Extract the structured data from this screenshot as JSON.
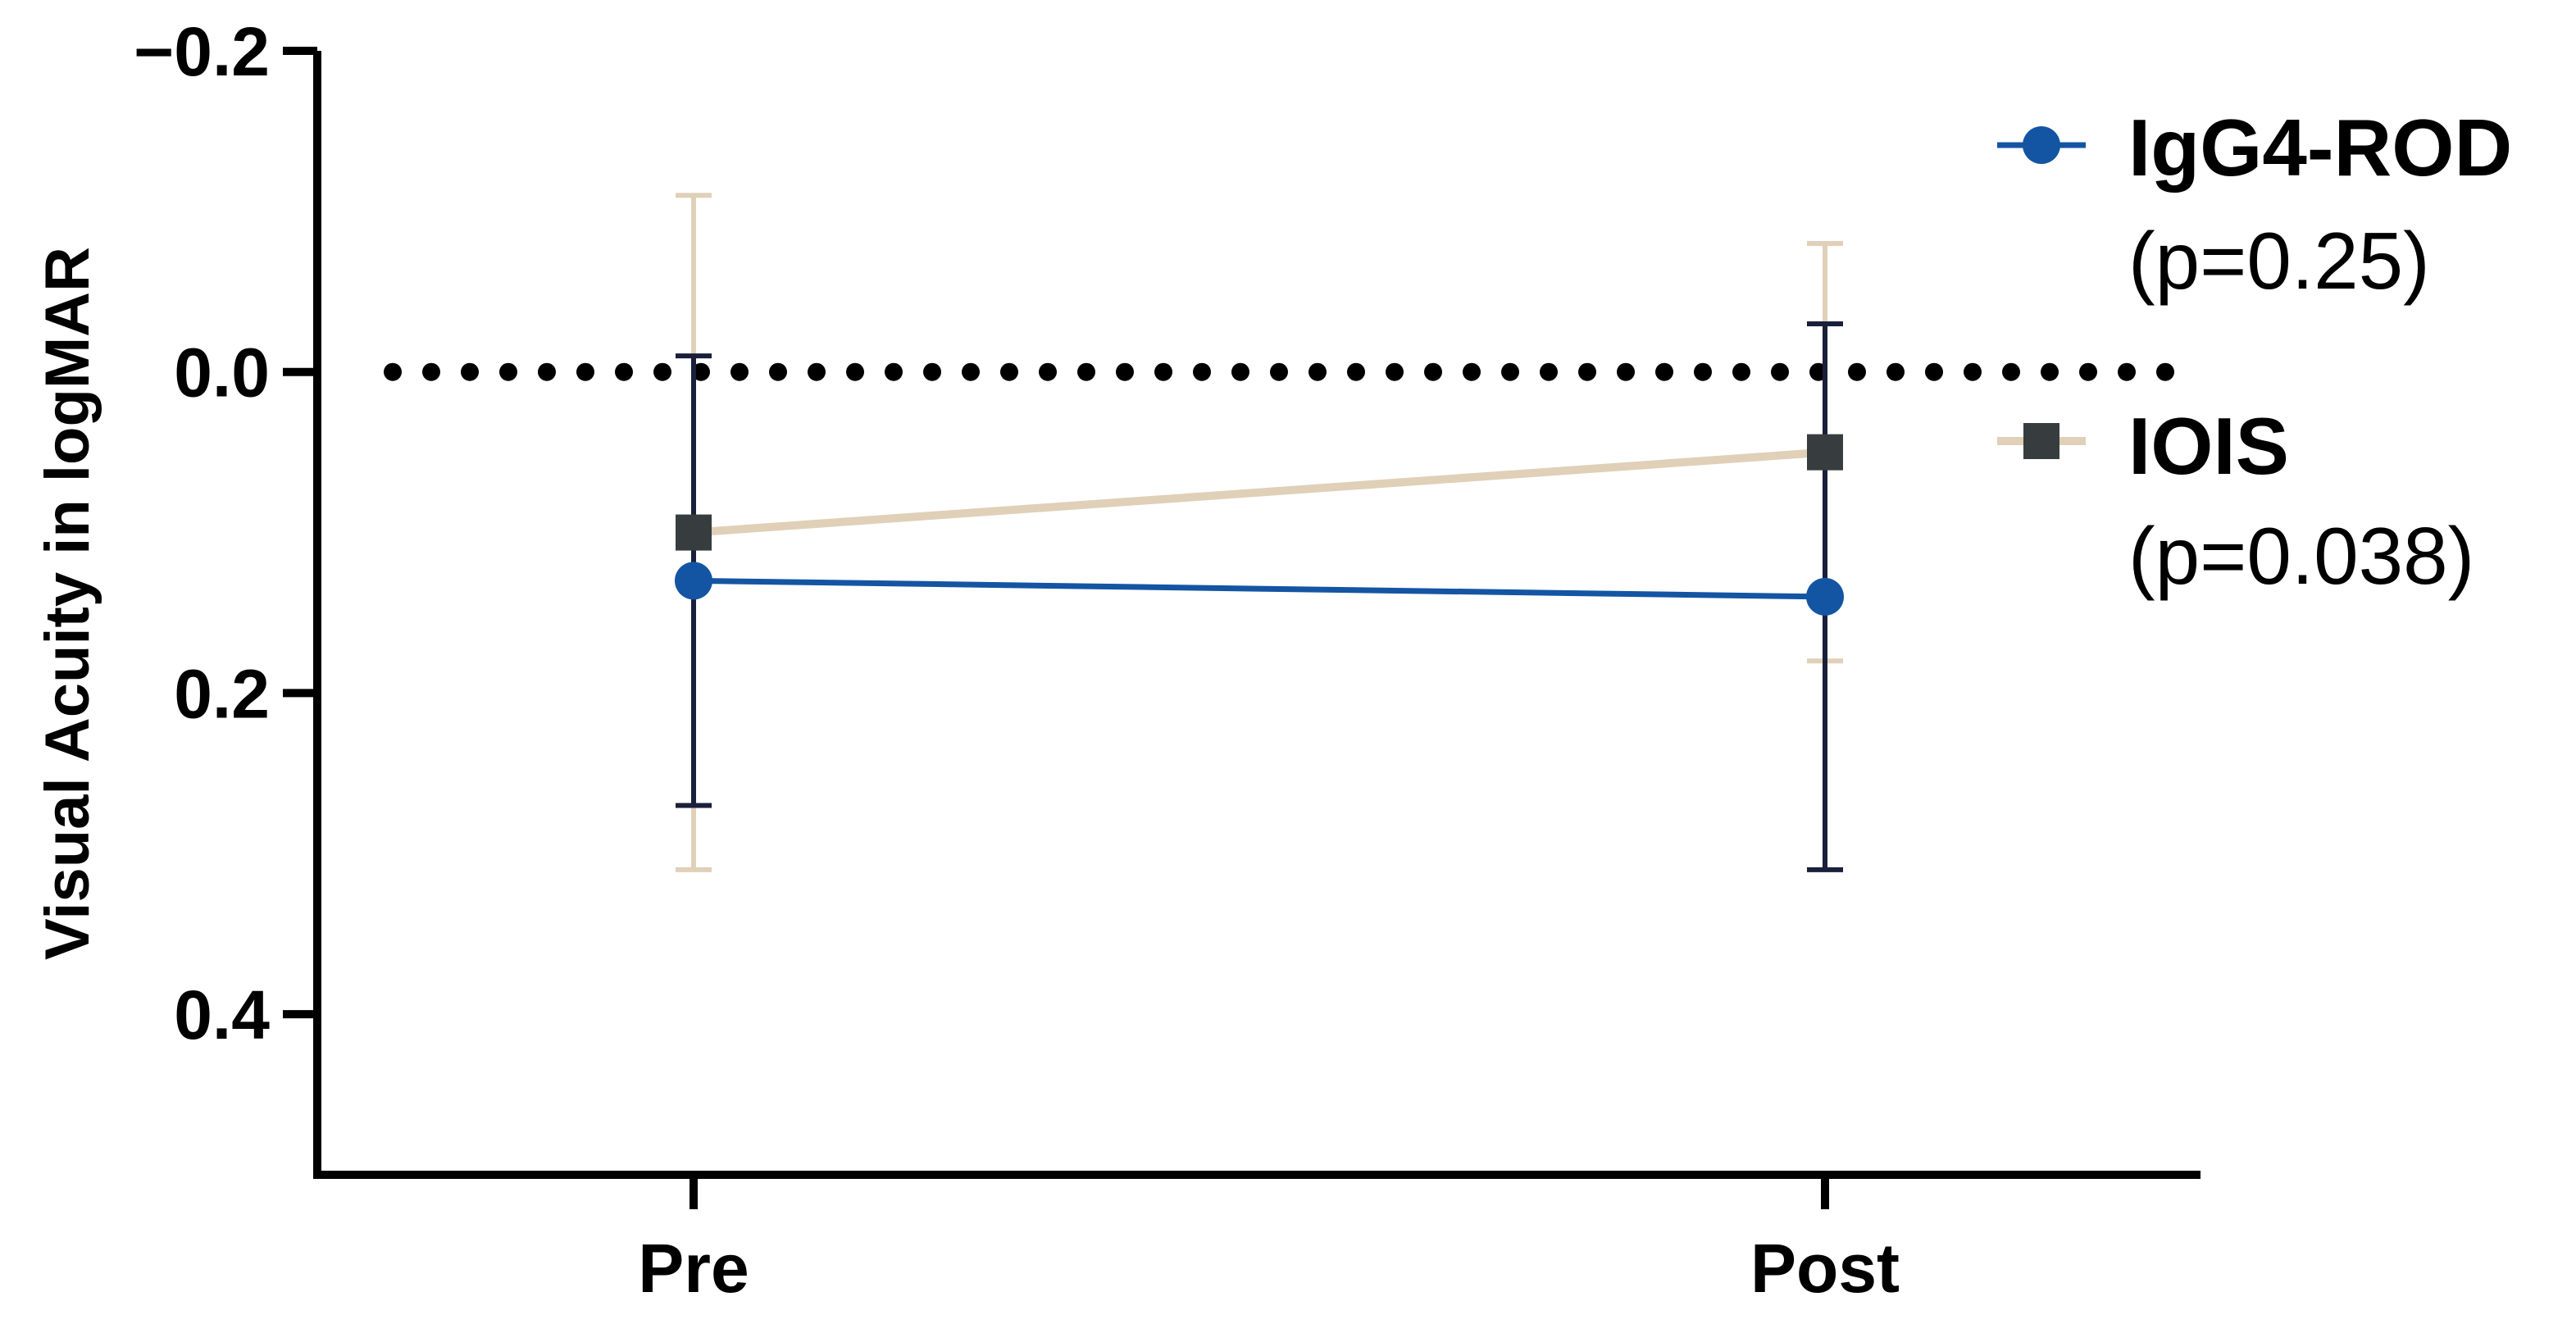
{
  "chart_data": {
    "type": "line",
    "title": "",
    "xlabel": "",
    "ylabel": "Visual Acuity in logMAR",
    "categories": [
      "Pre",
      "Post"
    ],
    "y_axis": {
      "range": [
        -0.2,
        0.5
      ],
      "inverted": true,
      "ticks": [
        -0.2,
        0.0,
        0.2,
        0.4
      ],
      "tick_labels": [
        "−0.2",
        "0.0",
        "0.2",
        "0.4"
      ]
    },
    "reference_line": {
      "y": 0.0,
      "style": "dotted",
      "color": "#000000"
    },
    "grid": false,
    "legend_position": "right",
    "series": [
      {
        "name": "IgG4-ROD",
        "p_label": "(p=0.25)",
        "marker": "circle",
        "color": "#1455A3",
        "errorbar_color": "#1a1f3a",
        "values": [
          0.13,
          0.14
        ],
        "error_low": [
          -0.01,
          -0.03
        ],
        "error_high": [
          0.27,
          0.31
        ]
      },
      {
        "name": "IOIS",
        "p_label": "(p=0.038)",
        "marker": "square",
        "color": "#E0D0B8",
        "marker_color": "#373D3F",
        "errorbar_color": "#E0D0B8",
        "values": [
          0.1,
          0.05
        ],
        "error_low": [
          -0.11,
          -0.08
        ],
        "error_high": [
          0.31,
          0.18
        ]
      }
    ]
  }
}
